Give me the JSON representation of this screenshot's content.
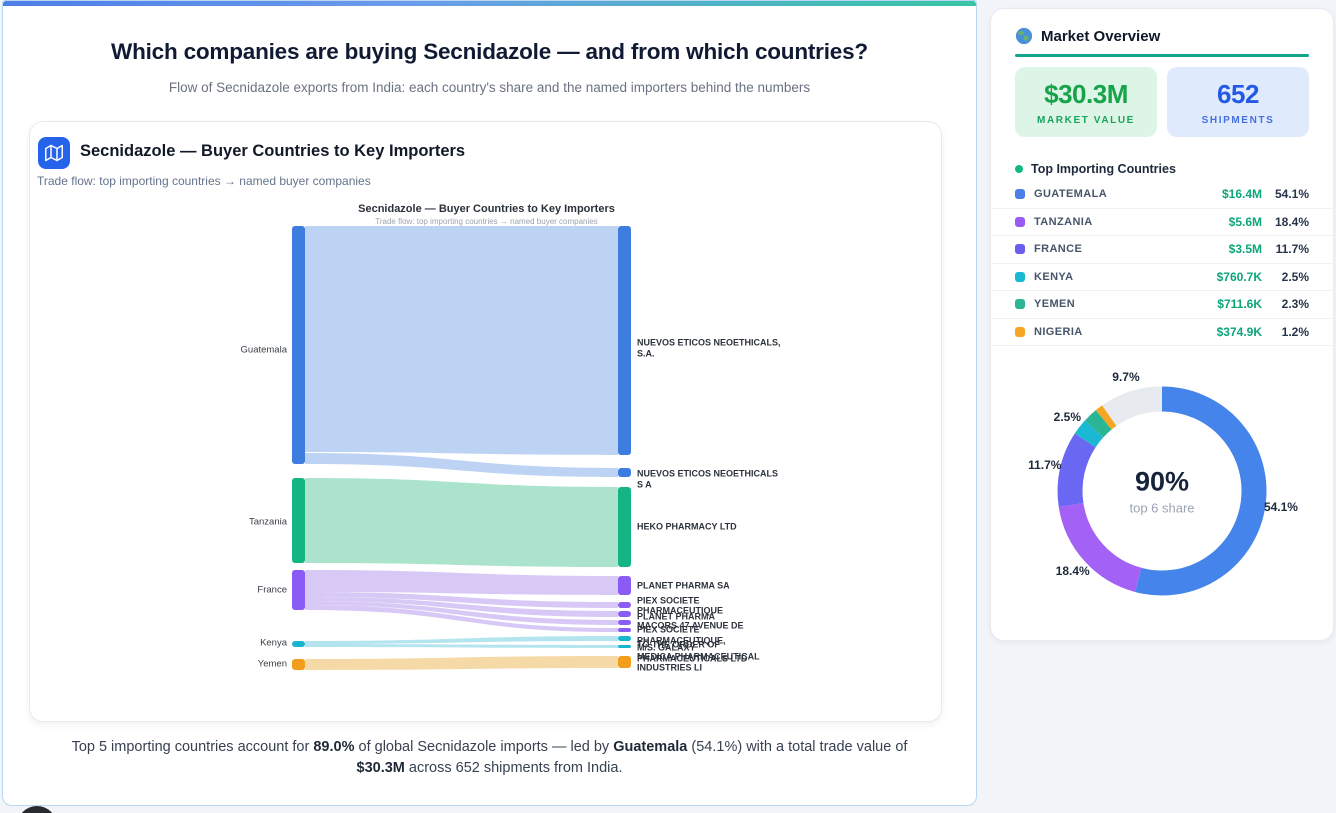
{
  "main_panel": {
    "title": "Which companies are buying Secnidazole — and from which countries?",
    "subtitle": "Flow of Secnidazole exports from India: each country's share and the named importers behind the numbers",
    "chart_card": {
      "title": "Secnidazole — Buyer Countries to Key Importers",
      "subtitle": "Trade flow: top importing countries → named buyer companies",
      "icon": "map-icon",
      "icon_bg": "#2563eb"
    },
    "summary_segments": [
      {
        "text": "Top 5 importing countries account for ",
        "bold": false
      },
      {
        "text": "89.0%",
        "bold": true
      },
      {
        "text": " of global Secnidazole imports — led by ",
        "bold": false
      },
      {
        "text": "Guatemala",
        "bold": true
      },
      {
        "text": " (54.1%) with a total trade value of ",
        "bold": false
      },
      {
        "text": "$30.3M",
        "bold": true
      },
      {
        "text": " across 652 shipments from India.",
        "bold": false
      }
    ]
  },
  "sidebar": {
    "title": "Market Overview",
    "icon": "globe-icon",
    "underline_color": "#12a58b",
    "stats": [
      {
        "value": "$30.3M",
        "label": "MARKET VALUE",
        "bg": "#dcf5e6",
        "value_color": "#17a34a",
        "label_color": "#1ba45c"
      },
      {
        "value": "652",
        "label": "SHIPMENTS",
        "bg": "#dfeafc",
        "value_color": "#2458e6",
        "label_color": "#4470e0"
      }
    ],
    "top_countries": {
      "title": "Top Importing Countries",
      "dot_color": "#10b981",
      "rows": [
        {
          "name": "GUATEMALA",
          "value": "$16.4M",
          "pct": "54.1%",
          "color": "#4a7fe8"
        },
        {
          "name": "TANZANIA",
          "value": "$5.6M",
          "pct": "18.4%",
          "color": "#9b5cf5"
        },
        {
          "name": "FRANCE",
          "value": "$3.5M",
          "pct": "11.7%",
          "color": "#6a5df0"
        },
        {
          "name": "KENYA",
          "value": "$760.7K",
          "pct": "2.5%",
          "color": "#1bb8d4"
        },
        {
          "name": "YEMEN",
          "value": "$711.6K",
          "pct": "2.3%",
          "color": "#2ab594"
        },
        {
          "name": "NIGERIA",
          "value": "$374.9K",
          "pct": "1.2%",
          "color": "#f5a623"
        }
      ]
    }
  },
  "chart_data": [
    {
      "type": "sankey",
      "title": "Secnidazole — Buyer Countries to Key Importers",
      "subtitle": "Trade flow: top importing countries → named buyer companies",
      "sources": [
        {
          "label": "Guatemala",
          "color": "#3e7de0",
          "flow_color": "#bdd3f4"
        },
        {
          "label": "Tanzania",
          "color": "#14b583",
          "flow_color": "#abe3cd"
        },
        {
          "label": "France",
          "color": "#8a5cf5",
          "flow_color": "#d7c8f6"
        },
        {
          "label": "Kenya",
          "color": "#18b5cf",
          "flow_color": "#b4e5ef"
        },
        {
          "label": "Yemen",
          "color": "#f29d1c",
          "flow_color": "#f5d9a7"
        }
      ],
      "targets": [
        {
          "label": "NUEVOS ETICOS NEOETHICALS,\nS.A.",
          "color": "#3e7de0"
        },
        {
          "label": "NUEVOS ETICOS NEOETHICALS\nS A",
          "color": "#3e7de0"
        },
        {
          "label": "HEKO PHARMACY LTD",
          "color": "#14b583"
        },
        {
          "label": "PLANET PHARMA SA",
          "color": "#8a5cf5"
        },
        {
          "label": "PIEX SOCIETE\nPHARMACEUTIQUE",
          "color": "#8a5cf5"
        },
        {
          "label": "PLANET PHARMA",
          "color": "#8a5cf5"
        },
        {
          "label": "MACORS 47 AVENUE DE",
          "color": "#8a5cf5"
        },
        {
          "label": "PIEX SOCIETE\nPHARMACEUTIQUE,",
          "color": "#8a5cf5"
        },
        {
          "label": "TO THE ORDER OF",
          "color": "#18b5cf"
        },
        {
          "label": "M/S. GALAXY\nPHARMACEUTICALS LTD",
          "color": "#18b5cf"
        },
        {
          "label": "MEDICA PHARMACEUTICAL\nINDUSTRIES LI",
          "color": "#f29d1c"
        }
      ],
      "links": [
        {
          "source": "Guatemala",
          "target": "NUEVOS ETICOS NEOETHICALS, S.A."
        },
        {
          "source": "Guatemala",
          "target": "NUEVOS ETICOS NEOETHICALS S A"
        },
        {
          "source": "Tanzania",
          "target": "HEKO PHARMACY LTD"
        },
        {
          "source": "France",
          "target": "PLANET PHARMA SA"
        },
        {
          "source": "France",
          "target": "PIEX SOCIETE PHARMACEUTIQUE"
        },
        {
          "source": "France",
          "target": "PLANET PHARMA"
        },
        {
          "source": "France",
          "target": "MACORS 47 AVENUE DE"
        },
        {
          "source": "France",
          "target": "PIEX SOCIETE PHARMACEUTIQUE,"
        },
        {
          "source": "Kenya",
          "target": "TO THE ORDER OF"
        },
        {
          "source": "Kenya",
          "target": "M/S. GALAXY PHARMACEUTICALS LTD"
        },
        {
          "source": "Yemen",
          "target": "MEDICA PHARMACEUTICAL INDUSTRIES LI"
        }
      ]
    },
    {
      "type": "pie",
      "center_value": "90%",
      "center_label": "top 6 share",
      "slices": [
        {
          "name": "GUATEMALA",
          "pct": 54.1,
          "color": "#4584ea",
          "labeled": true
        },
        {
          "name": "TANZANIA",
          "pct": 18.4,
          "color": "#a361f5",
          "labeled": true
        },
        {
          "name": "FRANCE",
          "pct": 11.7,
          "color": "#6a68f2",
          "labeled": true
        },
        {
          "name": "KENYA",
          "pct": 2.5,
          "color": "#1bb8d4",
          "labeled": true
        },
        {
          "name": "YEMEN",
          "pct": 2.3,
          "color": "#2ab594",
          "labeled": false
        },
        {
          "name": "NIGERIA",
          "pct": 1.2,
          "color": "#f5a623",
          "labeled": false
        },
        {
          "name": "OTHER",
          "pct": 9.7,
          "color": "#e7eaee",
          "labeled": true
        }
      ]
    }
  ]
}
